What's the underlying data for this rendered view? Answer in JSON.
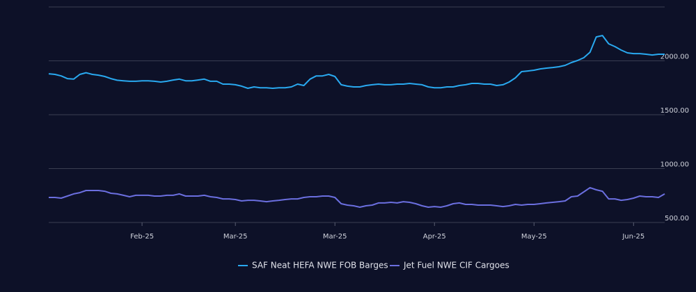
{
  "chart_data": {
    "type": "line",
    "categories": [
      null,
      null,
      null,
      null,
      null,
      null,
      null,
      null,
      null,
      null,
      null,
      null,
      null,
      null,
      null,
      "Feb-25",
      null,
      null,
      null,
      null,
      null,
      null,
      null,
      null,
      null,
      null,
      null,
      null,
      null,
      null,
      "Mar-25",
      null,
      null,
      null,
      null,
      null,
      null,
      null,
      null,
      null,
      null,
      null,
      null,
      null,
      null,
      null,
      "Mar-25",
      null,
      null,
      null,
      null,
      null,
      null,
      null,
      null,
      null,
      null,
      null,
      null,
      null,
      null,
      null,
      "Apr-25",
      null,
      null,
      null,
      null,
      null,
      null,
      null,
      null,
      null,
      null,
      null,
      null,
      null,
      null,
      null,
      "May-25",
      null,
      null,
      null,
      null,
      null,
      null,
      null,
      null,
      null,
      null,
      null,
      null,
      null,
      null,
      null,
      "Jun-25",
      null,
      null,
      null,
      null,
      null
    ],
    "series": [
      {
        "name": "SAF Neat HEFA NWE FOB Barges",
        "color": "#29a9f0",
        "values": [
          1880,
          1874,
          1860,
          1835,
          1830,
          1874,
          1890,
          1874,
          1867,
          1855,
          1835,
          1820,
          1815,
          1810,
          1810,
          1815,
          1815,
          1810,
          1803,
          1810,
          1822,
          1830,
          1815,
          1815,
          1822,
          1830,
          1810,
          1810,
          1784,
          1784,
          1778,
          1765,
          1745,
          1758,
          1750,
          1750,
          1745,
          1750,
          1750,
          1758,
          1784,
          1771,
          1830,
          1860,
          1860,
          1874,
          1855,
          1778,
          1765,
          1758,
          1758,
          1771,
          1778,
          1784,
          1778,
          1778,
          1784,
          1784,
          1790,
          1784,
          1778,
          1758,
          1750,
          1750,
          1758,
          1758,
          1771,
          1778,
          1790,
          1790,
          1784,
          1784,
          1771,
          1778,
          1803,
          1842,
          1900,
          1906,
          1913,
          1925,
          1932,
          1938,
          1945,
          1958,
          1984,
          2003,
          2029,
          2080,
          2222,
          2235,
          2158,
          2132,
          2100,
          2074,
          2067,
          2067,
          2061,
          2054,
          2061,
          2061
        ]
      },
      {
        "name": "Jet Fuel NWE CIF Cargoes",
        "color": "#6b6fe0",
        "values": [
          732,
          732,
          726,
          745,
          765,
          777,
          797,
          797,
          797,
          790,
          771,
          765,
          752,
          739,
          752,
          752,
          752,
          745,
          745,
          752,
          752,
          765,
          745,
          745,
          745,
          752,
          739,
          732,
          719,
          719,
          713,
          700,
          706,
          706,
          700,
          693,
          700,
          706,
          713,
          719,
          719,
          732,
          739,
          739,
          745,
          745,
          732,
          674,
          661,
          655,
          642,
          655,
          661,
          681,
          681,
          687,
          681,
          693,
          687,
          674,
          655,
          642,
          648,
          642,
          655,
          674,
          681,
          668,
          668,
          661,
          661,
          661,
          655,
          648,
          655,
          668,
          661,
          668,
          668,
          674,
          681,
          687,
          693,
          700,
          739,
          745,
          784,
          823,
          803,
          790,
          719,
          719,
          706,
          713,
          726,
          745,
          739,
          739,
          732,
          765
        ]
      }
    ],
    "ylim": [
      500,
      2500
    ],
    "yticks": [
      {
        "value": 500,
        "label": "500.00"
      },
      {
        "value": 1000,
        "label": "1000.00"
      },
      {
        "value": 1500,
        "label": "1500.00"
      },
      {
        "value": 2000,
        "label": "2000.00"
      }
    ],
    "grid": true
  }
}
